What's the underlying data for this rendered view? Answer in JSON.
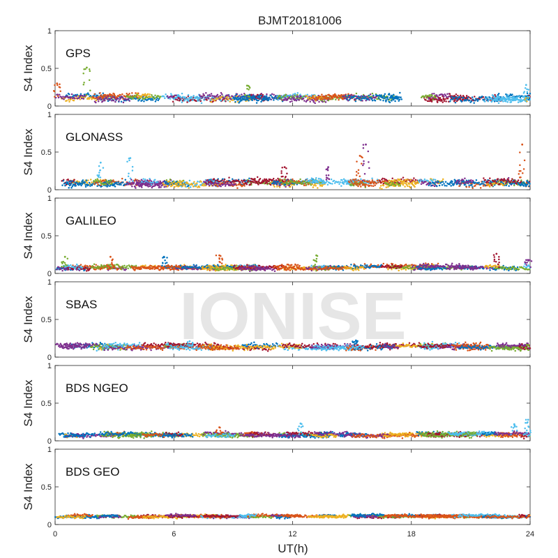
{
  "chart_data": {
    "type": "scatter",
    "title": "BJMT20181006",
    "xlabel": "UT(h)",
    "ylabel": "S4 Index",
    "xlim": [
      0,
      24
    ],
    "ylim": [
      0,
      1
    ],
    "x_ticks": [
      "0",
      "6",
      "12",
      "18",
      "24"
    ],
    "y_ticks": [
      "0",
      "0.5",
      "1"
    ],
    "watermark": "IONISE",
    "series_colors": [
      "#0072BD",
      "#D95319",
      "#EDB120",
      "#7E2F8E",
      "#77AC30",
      "#4DBEEE",
      "#A2142F"
    ],
    "panels": [
      {
        "label": "GPS",
        "baseline": 0.11,
        "noise": 0.045,
        "bumps": [
          {
            "x": 1.6,
            "y": 0.51
          },
          {
            "x": 9.7,
            "y": 0.27
          },
          {
            "x": 0.1,
            "y": 0.3
          },
          {
            "x": 23.8,
            "y": 0.28
          }
        ]
      },
      {
        "label": "GLONASS",
        "baseline": 0.09,
        "noise": 0.045,
        "bumps": [
          {
            "x": 15.7,
            "y": 0.6
          },
          {
            "x": 23.6,
            "y": 0.6
          },
          {
            "x": 2.3,
            "y": 0.36
          },
          {
            "x": 3.8,
            "y": 0.42
          },
          {
            "x": 15.4,
            "y": 0.45
          },
          {
            "x": 11.6,
            "y": 0.3
          },
          {
            "x": 13.8,
            "y": 0.3
          }
        ]
      },
      {
        "label": "GALILEO",
        "baseline": 0.08,
        "noise": 0.03,
        "bumps": [
          {
            "x": 0.5,
            "y": 0.22
          },
          {
            "x": 2.8,
            "y": 0.22
          },
          {
            "x": 5.5,
            "y": 0.22
          },
          {
            "x": 8.3,
            "y": 0.24
          },
          {
            "x": 13.2,
            "y": 0.24
          },
          {
            "x": 22.3,
            "y": 0.26
          },
          {
            "x": 23.9,
            "y": 0.18
          }
        ]
      },
      {
        "label": "SBAS",
        "baseline": 0.14,
        "noise": 0.035,
        "bumps": [
          {
            "x": 15.2,
            "y": 0.22
          },
          {
            "x": 6.8,
            "y": 0.21
          }
        ]
      },
      {
        "label": "BDS NGEO",
        "baseline": 0.08,
        "noise": 0.03,
        "bumps": [
          {
            "x": 8.3,
            "y": 0.18
          },
          {
            "x": 12.4,
            "y": 0.23
          },
          {
            "x": 23.9,
            "y": 0.28
          },
          {
            "x": 23.2,
            "y": 0.22
          }
        ]
      },
      {
        "label": "BDS GEO",
        "baseline": 0.11,
        "noise": 0.02,
        "bumps": []
      }
    ]
  }
}
